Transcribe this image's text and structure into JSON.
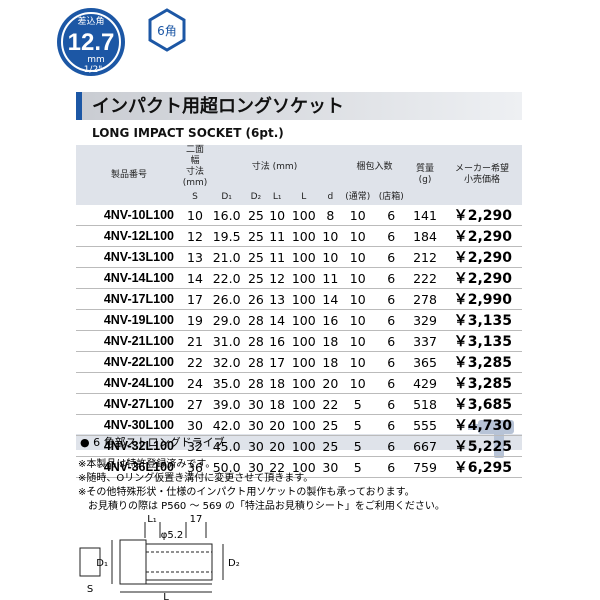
{
  "badge": {
    "caption": "差込角",
    "size": "12.7",
    "unit": "mm",
    "fraction": "1/2\"",
    "hex": "6角"
  },
  "header": {
    "title": "インパクト用超ロングソケット",
    "subtitle": "LONG IMPACT SOCKET (6pt.)"
  },
  "table": {
    "head": {
      "code": "製品番号",
      "width": [
        "二面幅",
        "寸法",
        "(mm)"
      ],
      "dims": "寸法 (mm)",
      "pack": "梱包入数",
      "mass": [
        "質量",
        "(g)"
      ],
      "price": [
        "メーカー希望",
        "小売価格"
      ]
    },
    "subhead": [
      "S",
      "D₁",
      "D₂",
      "L₁",
      "L",
      "d",
      "(通常)",
      "(店箱)"
    ],
    "rows": [
      [
        "4NV-10L100",
        "10",
        "16.0",
        "25",
        "10",
        "100",
        "8",
        "10",
        "6",
        "141",
        "￥2,290"
      ],
      [
        "4NV-12L100",
        "12",
        "19.5",
        "25",
        "11",
        "100",
        "10",
        "10",
        "6",
        "184",
        "￥2,290"
      ],
      [
        "4NV-13L100",
        "13",
        "21.0",
        "25",
        "11",
        "100",
        "10",
        "10",
        "6",
        "212",
        "￥2,290"
      ],
      [
        "4NV-14L100",
        "14",
        "22.0",
        "25",
        "12",
        "100",
        "11",
        "10",
        "6",
        "222",
        "￥2,290"
      ],
      [
        "4NV-17L100",
        "17",
        "26.0",
        "26",
        "13",
        "100",
        "14",
        "10",
        "6",
        "278",
        "￥2,990"
      ],
      [
        "4NV-19L100",
        "19",
        "29.0",
        "28",
        "14",
        "100",
        "16",
        "10",
        "6",
        "329",
        "￥3,135"
      ],
      [
        "4NV-21L100",
        "21",
        "31.0",
        "28",
        "16",
        "100",
        "18",
        "10",
        "6",
        "337",
        "￥3,135"
      ],
      [
        "4NV-22L100",
        "22",
        "32.0",
        "28",
        "17",
        "100",
        "18",
        "10",
        "6",
        "365",
        "￥3,285"
      ],
      [
        "4NV-24L100",
        "24",
        "35.0",
        "28",
        "18",
        "100",
        "20",
        "10",
        "6",
        "429",
        "￥3,285"
      ],
      [
        "4NV-27L100",
        "27",
        "39.0",
        "30",
        "18",
        "100",
        "22",
        "5",
        "6",
        "518",
        "￥3,685"
      ],
      [
        "4NV-30L100",
        "30",
        "42.0",
        "30",
        "20",
        "100",
        "25",
        "5",
        "6",
        "555",
        "￥4,730"
      ],
      [
        "4NV-32L100",
        "32",
        "45.0",
        "30",
        "20",
        "100",
        "25",
        "5",
        "6",
        "667",
        "￥5,225"
      ],
      [
        "4NV-36L100",
        "36",
        "50.0",
        "30",
        "22",
        "100",
        "30",
        "5",
        "6",
        "759",
        "￥6,295"
      ]
    ]
  },
  "feature": "● 6 角部ストロングドライブ",
  "notes": [
    "※本製品は特許登録済みです。",
    "※随時、Oリング仮置き溝付に変更させて頂きます。",
    "※その他特殊形状・仕様のインパクト用ソケットの製作も承っております。",
    "　お見積りの際は P560 ～ 569 の「特注品お見積りシート」をご利用ください。"
  ],
  "diagram": {
    "l1": "L₁",
    "w17": "17",
    "phi": "φ5.2",
    "d1": "D₁",
    "d2": "D₂",
    "s": "S",
    "l": "L"
  }
}
